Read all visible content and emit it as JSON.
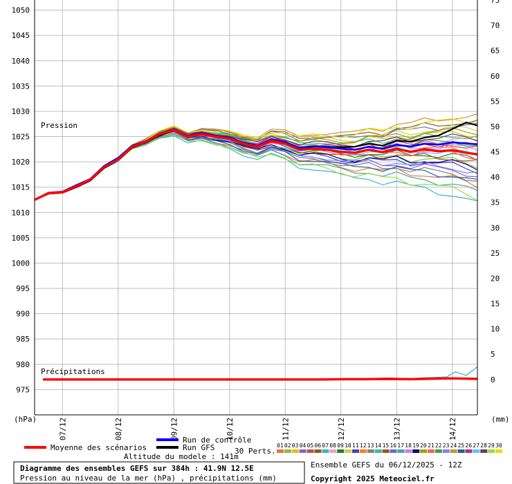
{
  "chart_data": {
    "type": "line",
    "left_axis": {
      "unit_label": "(hPa)",
      "range": [
        970,
        1052
      ],
      "ticks": [
        975,
        980,
        985,
        990,
        995,
        1000,
        1005,
        1010,
        1015,
        1020,
        1025,
        1030,
        1035,
        1040,
        1045,
        1050
      ]
    },
    "right_axis": {
      "unit_label": "(mm)",
      "range": [
        -7,
        75
      ],
      "ticks": [
        0,
        5,
        10,
        15,
        20,
        25,
        30,
        35,
        40,
        45,
        50,
        55,
        60,
        65,
        70,
        75
      ]
    },
    "x_labels": [
      {
        "t": 0.85,
        "label": "07/12"
      },
      {
        "t": 1.85,
        "label": "08/12"
      },
      {
        "t": 2.85,
        "label": "09/12"
      },
      {
        "t": 3.85,
        "label": "10/12"
      },
      {
        "t": 4.85,
        "label": "11/12"
      },
      {
        "t": 5.85,
        "label": "12/12"
      },
      {
        "t": 6.85,
        "label": "13/12"
      },
      {
        "t": 7.85,
        "label": "14/12"
      }
    ],
    "x_range_days": [
      0.35,
      8.3
    ],
    "pressure_series_label": "Pression",
    "precip_series_label": "Précipitations",
    "mean_pressure": {
      "name": "Moyenne des scénarios",
      "color": "#ff0000",
      "t": [
        0.35,
        0.6,
        0.85,
        1.1,
        1.35,
        1.6,
        1.85,
        2.1,
        2.35,
        2.6,
        2.85,
        3.1,
        3.35,
        3.6,
        3.85,
        4.1,
        4.35,
        4.6,
        4.85,
        5.1,
        5.35,
        5.6,
        5.85,
        6.1,
        6.35,
        6.6,
        6.85,
        7.1,
        7.35,
        7.6,
        7.85,
        8.1,
        8.3
      ],
      "values": [
        1012.5,
        1013.8,
        1014.0,
        1015.2,
        1016.5,
        1019.0,
        1020.5,
        1023.0,
        1024.0,
        1025.5,
        1026.3,
        1025.0,
        1025.5,
        1025.0,
        1024.6,
        1023.6,
        1023.0,
        1024.2,
        1023.6,
        1022.4,
        1022.6,
        1022.4,
        1022.0,
        1021.8,
        1022.4,
        1021.9,
        1022.6,
        1022.0,
        1022.5,
        1022.1,
        1022.3,
        1021.8,
        1021.5
      ]
    },
    "control_run": {
      "name": "Run de contrôle",
      "color": "#0000ff",
      "values": [
        1012.5,
        1013.9,
        1014.1,
        1015.4,
        1016.6,
        1019.2,
        1020.8,
        1023.2,
        1024.1,
        1025.6,
        1026.4,
        1025.2,
        1025.7,
        1025.2,
        1024.8,
        1023.8,
        1023.2,
        1024.5,
        1023.9,
        1022.8,
        1023.1,
        1022.9,
        1022.6,
        1022.4,
        1023.0,
        1022.6,
        1023.4,
        1023.0,
        1023.6,
        1023.4,
        1023.9,
        1023.6,
        1023.5
      ]
    },
    "gfs_run": {
      "name": "Run GFS",
      "color": "#000000",
      "values": [
        1012.5,
        1013.7,
        1013.9,
        1015.0,
        1016.3,
        1018.8,
        1020.4,
        1022.8,
        1023.9,
        1025.3,
        1026.2,
        1024.9,
        1025.4,
        1025.0,
        1024.5,
        1023.5,
        1022.9,
        1024.1,
        1023.7,
        1022.6,
        1023.0,
        1023.0,
        1022.9,
        1023.0,
        1023.6,
        1023.2,
        1024.2,
        1024.0,
        1024.8,
        1025.2,
        1026.5,
        1027.8,
        1027.2
      ]
    },
    "perturbation_count_label": "30 Perts.",
    "perturbations": [
      {
        "id": "01",
        "color": "#e8743b",
        "offset": -3.5
      },
      {
        "id": "02",
        "color": "#8fbc3f",
        "offset": -1.2
      },
      {
        "id": "03",
        "color": "#e8c000",
        "offset": 2.2
      },
      {
        "id": "04",
        "color": "#9060c0",
        "offset": -2.4
      },
      {
        "id": "05",
        "color": "#c05050",
        "offset": 0.8
      },
      {
        "id": "06",
        "color": "#806020",
        "offset": 3.5
      },
      {
        "id": "07",
        "color": "#3cb0d0",
        "offset": -5.5
      },
      {
        "id": "08",
        "color": "#f0a0c0",
        "offset": 1.4
      },
      {
        "id": "09",
        "color": "#208020",
        "offset": -0.6
      },
      {
        "id": "10",
        "color": "#d0d040",
        "offset": 2.8
      },
      {
        "id": "11",
        "color": "#4040c0",
        "offset": -1.8
      },
      {
        "id": "12",
        "color": "#ff8000",
        "offset": 0.2
      },
      {
        "id": "13",
        "color": "#808080",
        "offset": -2.9
      },
      {
        "id": "14",
        "color": "#30c090",
        "offset": 1.9
      },
      {
        "id": "15",
        "color": "#a0522d",
        "offset": -0.9
      },
      {
        "id": "16",
        "color": "#6a6ad0",
        "offset": 3.1
      },
      {
        "id": "17",
        "color": "#50a0a0",
        "offset": -4.2
      },
      {
        "id": "18",
        "color": "#c080ff",
        "offset": 0.5
      },
      {
        "id": "19",
        "color": "#000080",
        "offset": -1.5
      },
      {
        "id": "20",
        "color": "#a0a000",
        "offset": 2.5
      },
      {
        "id": "21",
        "color": "#ff6060",
        "offset": -0.3
      },
      {
        "id": "22",
        "color": "#40a040",
        "offset": 1.1
      },
      {
        "id": "23",
        "color": "#8080ff",
        "offset": -2.1
      },
      {
        "id": "24",
        "color": "#d09030",
        "offset": 4.2
      },
      {
        "id": "25",
        "color": "#2060a0",
        "offset": -3.1
      },
      {
        "id": "26",
        "color": "#b03080",
        "offset": 0.9
      },
      {
        "id": "27",
        "color": "#60c0ff",
        "offset": -0.1
      },
      {
        "id": "28",
        "color": "#604060",
        "offset": 1.7
      },
      {
        "id": "29",
        "color": "#90e040",
        "offset": -4.8
      },
      {
        "id": "30",
        "color": "#e0e000",
        "offset": 3.8
      }
    ],
    "precipitation_mm": {
      "t": [
        0.5,
        5.5,
        5.9,
        6.3,
        6.7,
        7.1,
        7.5,
        7.75,
        7.9,
        8.1,
        8.3
      ],
      "mean": [
        0,
        0,
        0.05,
        0.05,
        0.1,
        0.05,
        0.15,
        0.2,
        0.2,
        0.15,
        0.1
      ],
      "max": [
        0,
        0,
        0.2,
        0.2,
        0.3,
        0.2,
        0.4,
        0.5,
        1.5,
        0.8,
        2.5
      ]
    }
  },
  "legend": {
    "mean_label": "Moyenne des scénarios",
    "control_label": "Run de contrôle",
    "gfs_label": "Run GFS",
    "altitude_label": "Altitude du modele : 141m",
    "perts_label": "30 Perts."
  },
  "footer": {
    "title_line1": "Diagramme des ensembles GEFS sur 384h : 41.9N 12.5E",
    "title_line2": "Pression au niveau de la mer (hPa) , précipitations (mm)",
    "run_info": "Ensemble GEFS du 06/12/2025 - 12Z",
    "copyright": "Copyright 2025 Meteociel.fr"
  }
}
